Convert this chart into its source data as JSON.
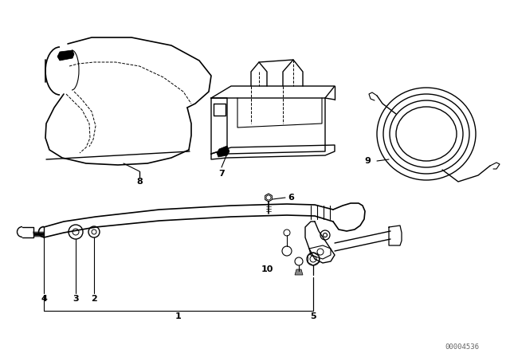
{
  "bg_color": "#ffffff",
  "line_color": "#000000",
  "watermark": "00004536",
  "label_fontsize": 8,
  "fig_width": 6.4,
  "fig_height": 4.48,
  "dpi": 100
}
